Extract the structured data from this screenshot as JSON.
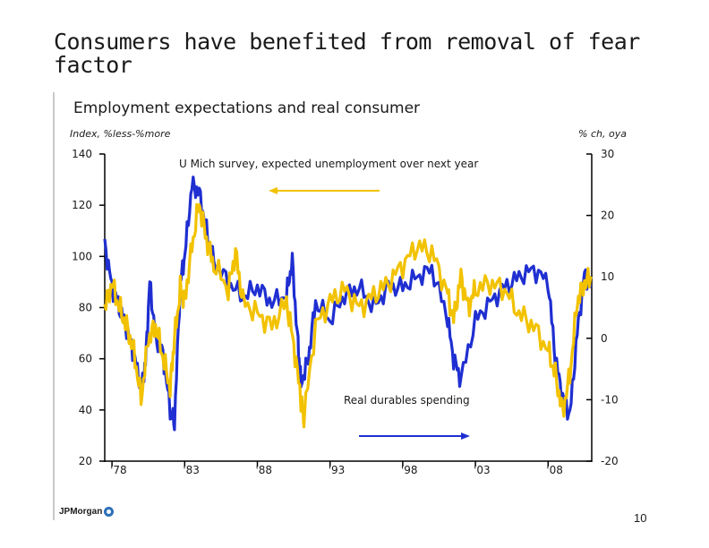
{
  "slide": {
    "title": "Consumers have benefited from removal of fear factor",
    "logo_text": "JPMorgan",
    "page_number": "10"
  },
  "colors": {
    "series_blue": "#1f2fd1",
    "series_gold": "#f2c200",
    "axis": "#000000",
    "text": "#1a1a1a"
  },
  "chart_data": {
    "type": "line",
    "title": "Employment expectations and real consumer",
    "left_axis_label": "Index, %less-%more",
    "right_axis_label": "% ch, oya",
    "left_ylim": [
      20,
      140
    ],
    "left_ticks": [
      "140",
      "120",
      "100",
      "80",
      "60",
      "40",
      "20"
    ],
    "right_ylim": [
      -20,
      30
    ],
    "right_ticks": [
      "30",
      "20",
      "10",
      "0",
      "-10",
      "-20"
    ],
    "xlim": [
      1977.5,
      2011
    ],
    "x_ticks": [
      "'78",
      "'83",
      "'88",
      "'93",
      "'98",
      "'03",
      "'08"
    ],
    "grid": false,
    "annotations": [
      {
        "text": "U Mich survey, expected unemployment over next year",
        "arrow": "left",
        "series": "U Mich survey, expected unemployment over next year"
      },
      {
        "text": "Real durables spending",
        "arrow": "right",
        "series": "Real durables spending"
      }
    ],
    "series": [
      {
        "name": "U Mich survey, expected unemployment over next year",
        "axis": "left",
        "color": "#1f2fd1",
        "x": [
          1977.5,
          1978,
          1978.5,
          1979,
          1979.5,
          1980,
          1980.3,
          1980.6,
          1981,
          1981.5,
          1982,
          1982.3,
          1982.7,
          1983,
          1983.5,
          1984,
          1984.5,
          1985,
          1986,
          1987,
          1988,
          1989,
          1990,
          1990.4,
          1990.8,
          1991,
          1991.5,
          1992,
          1993,
          1994,
          1995,
          1996,
          1997,
          1998,
          1999,
          2000,
          2001,
          2001.5,
          2002,
          2003,
          2004,
          2005,
          2006,
          2007,
          2008,
          2008.5,
          2009,
          2009.5,
          2010,
          2010.5,
          2011
        ],
        "values": [
          105,
          88,
          80,
          72,
          62,
          48,
          58,
          90,
          68,
          62,
          40,
          35,
          90,
          100,
          128,
          125,
          110,
          98,
          90,
          84,
          88,
          82,
          85,
          98,
          65,
          50,
          60,
          82,
          75,
          85,
          88,
          80,
          88,
          88,
          92,
          95,
          78,
          60,
          52,
          75,
          82,
          88,
          92,
          95,
          90,
          60,
          45,
          38,
          70,
          93,
          88
        ]
      },
      {
        "name": "Real durables spending",
        "axis": "right",
        "color": "#f2c200",
        "x": [
          1977.5,
          1978,
          1978.5,
          1979,
          1979.5,
          1980,
          1980.5,
          1981,
          1981.5,
          1982,
          1982.3,
          1982.7,
          1983,
          1983.5,
          1984,
          1984.5,
          1985,
          1986,
          1986.5,
          1987,
          1988,
          1989,
          1990,
          1990.5,
          1991,
          1991.2,
          1992,
          1993,
          1994,
          1995,
          1996,
          1997,
          1998,
          1999,
          2000,
          2001,
          2001.5,
          2002,
          2002.5,
          2003,
          2004,
          2005,
          2006,
          2007,
          2008,
          2008.5,
          2009,
          2009.5,
          2010,
          2010.5,
          2011
        ],
        "values": [
          5,
          9,
          5,
          2,
          -2,
          -10,
          0,
          2,
          -3,
          -8,
          0,
          8,
          6,
          15,
          22,
          16,
          12,
          8,
          14,
          6,
          4,
          2,
          6,
          -1,
          -10,
          -13,
          2,
          6,
          8,
          5,
          7,
          9,
          12,
          15,
          14,
          8,
          3,
          10,
          5,
          8,
          9,
          8,
          4,
          2,
          -2,
          -6,
          -12,
          -6,
          6,
          9,
          10
        ]
      }
    ]
  }
}
